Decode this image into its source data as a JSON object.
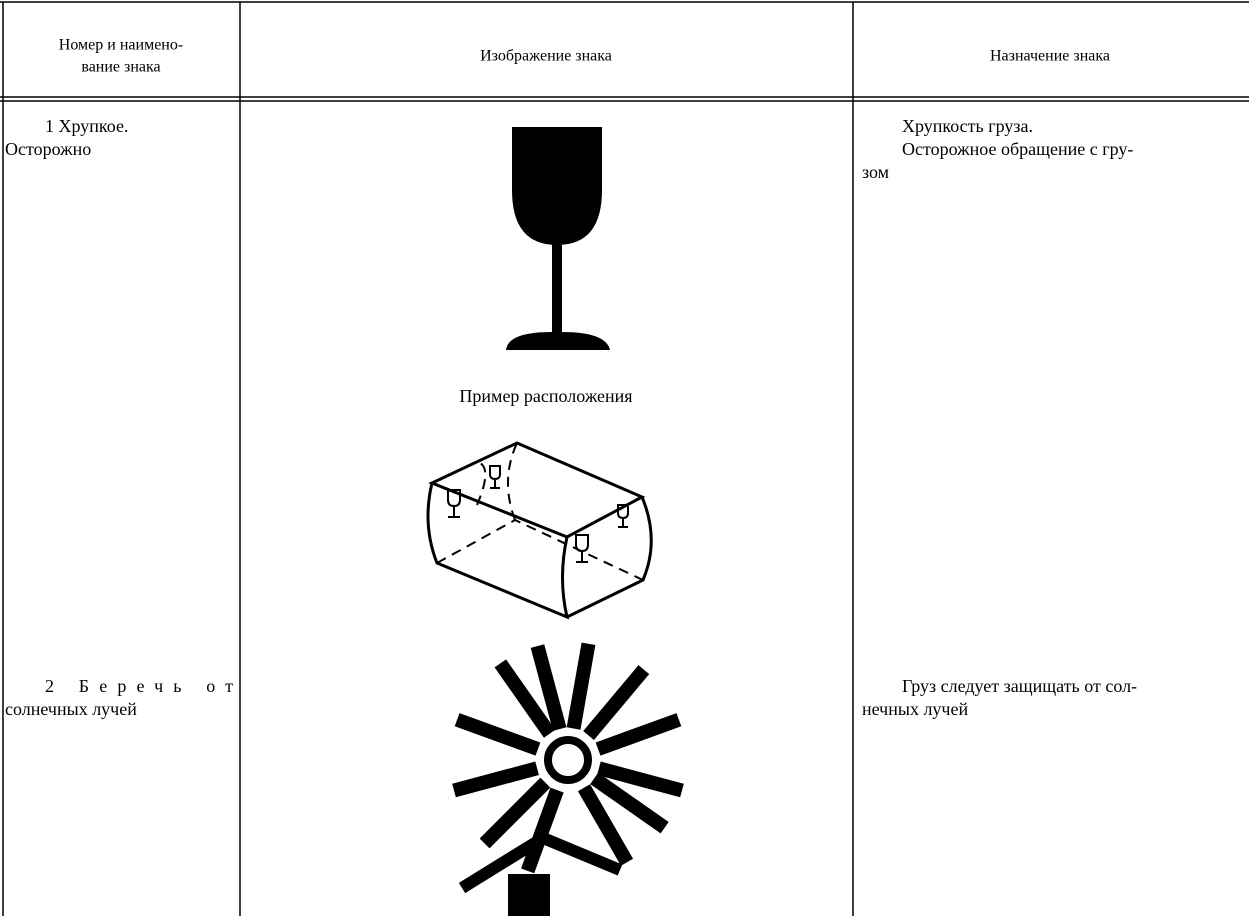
{
  "table": {
    "header": [
      [
        "Номер и наимено-",
        "вание знака"
      ],
      [
        "Изображение знака"
      ],
      [
        "Назначение знака"
      ]
    ],
    "rows": [
      {
        "name": [
          "1 Хрупкое.",
          "Осторожно"
        ],
        "example_label": "Пример расположения",
        "purpose": [
          "Хрупкость груза.",
          "Осторожное обращение с гру-",
          "зом"
        ]
      },
      {
        "name": [
          "2 Беречь от",
          "солнечных лучей"
        ],
        "purpose": [
          "Груз следует защищать от сол-",
          "нечных лучей"
        ]
      }
    ]
  }
}
